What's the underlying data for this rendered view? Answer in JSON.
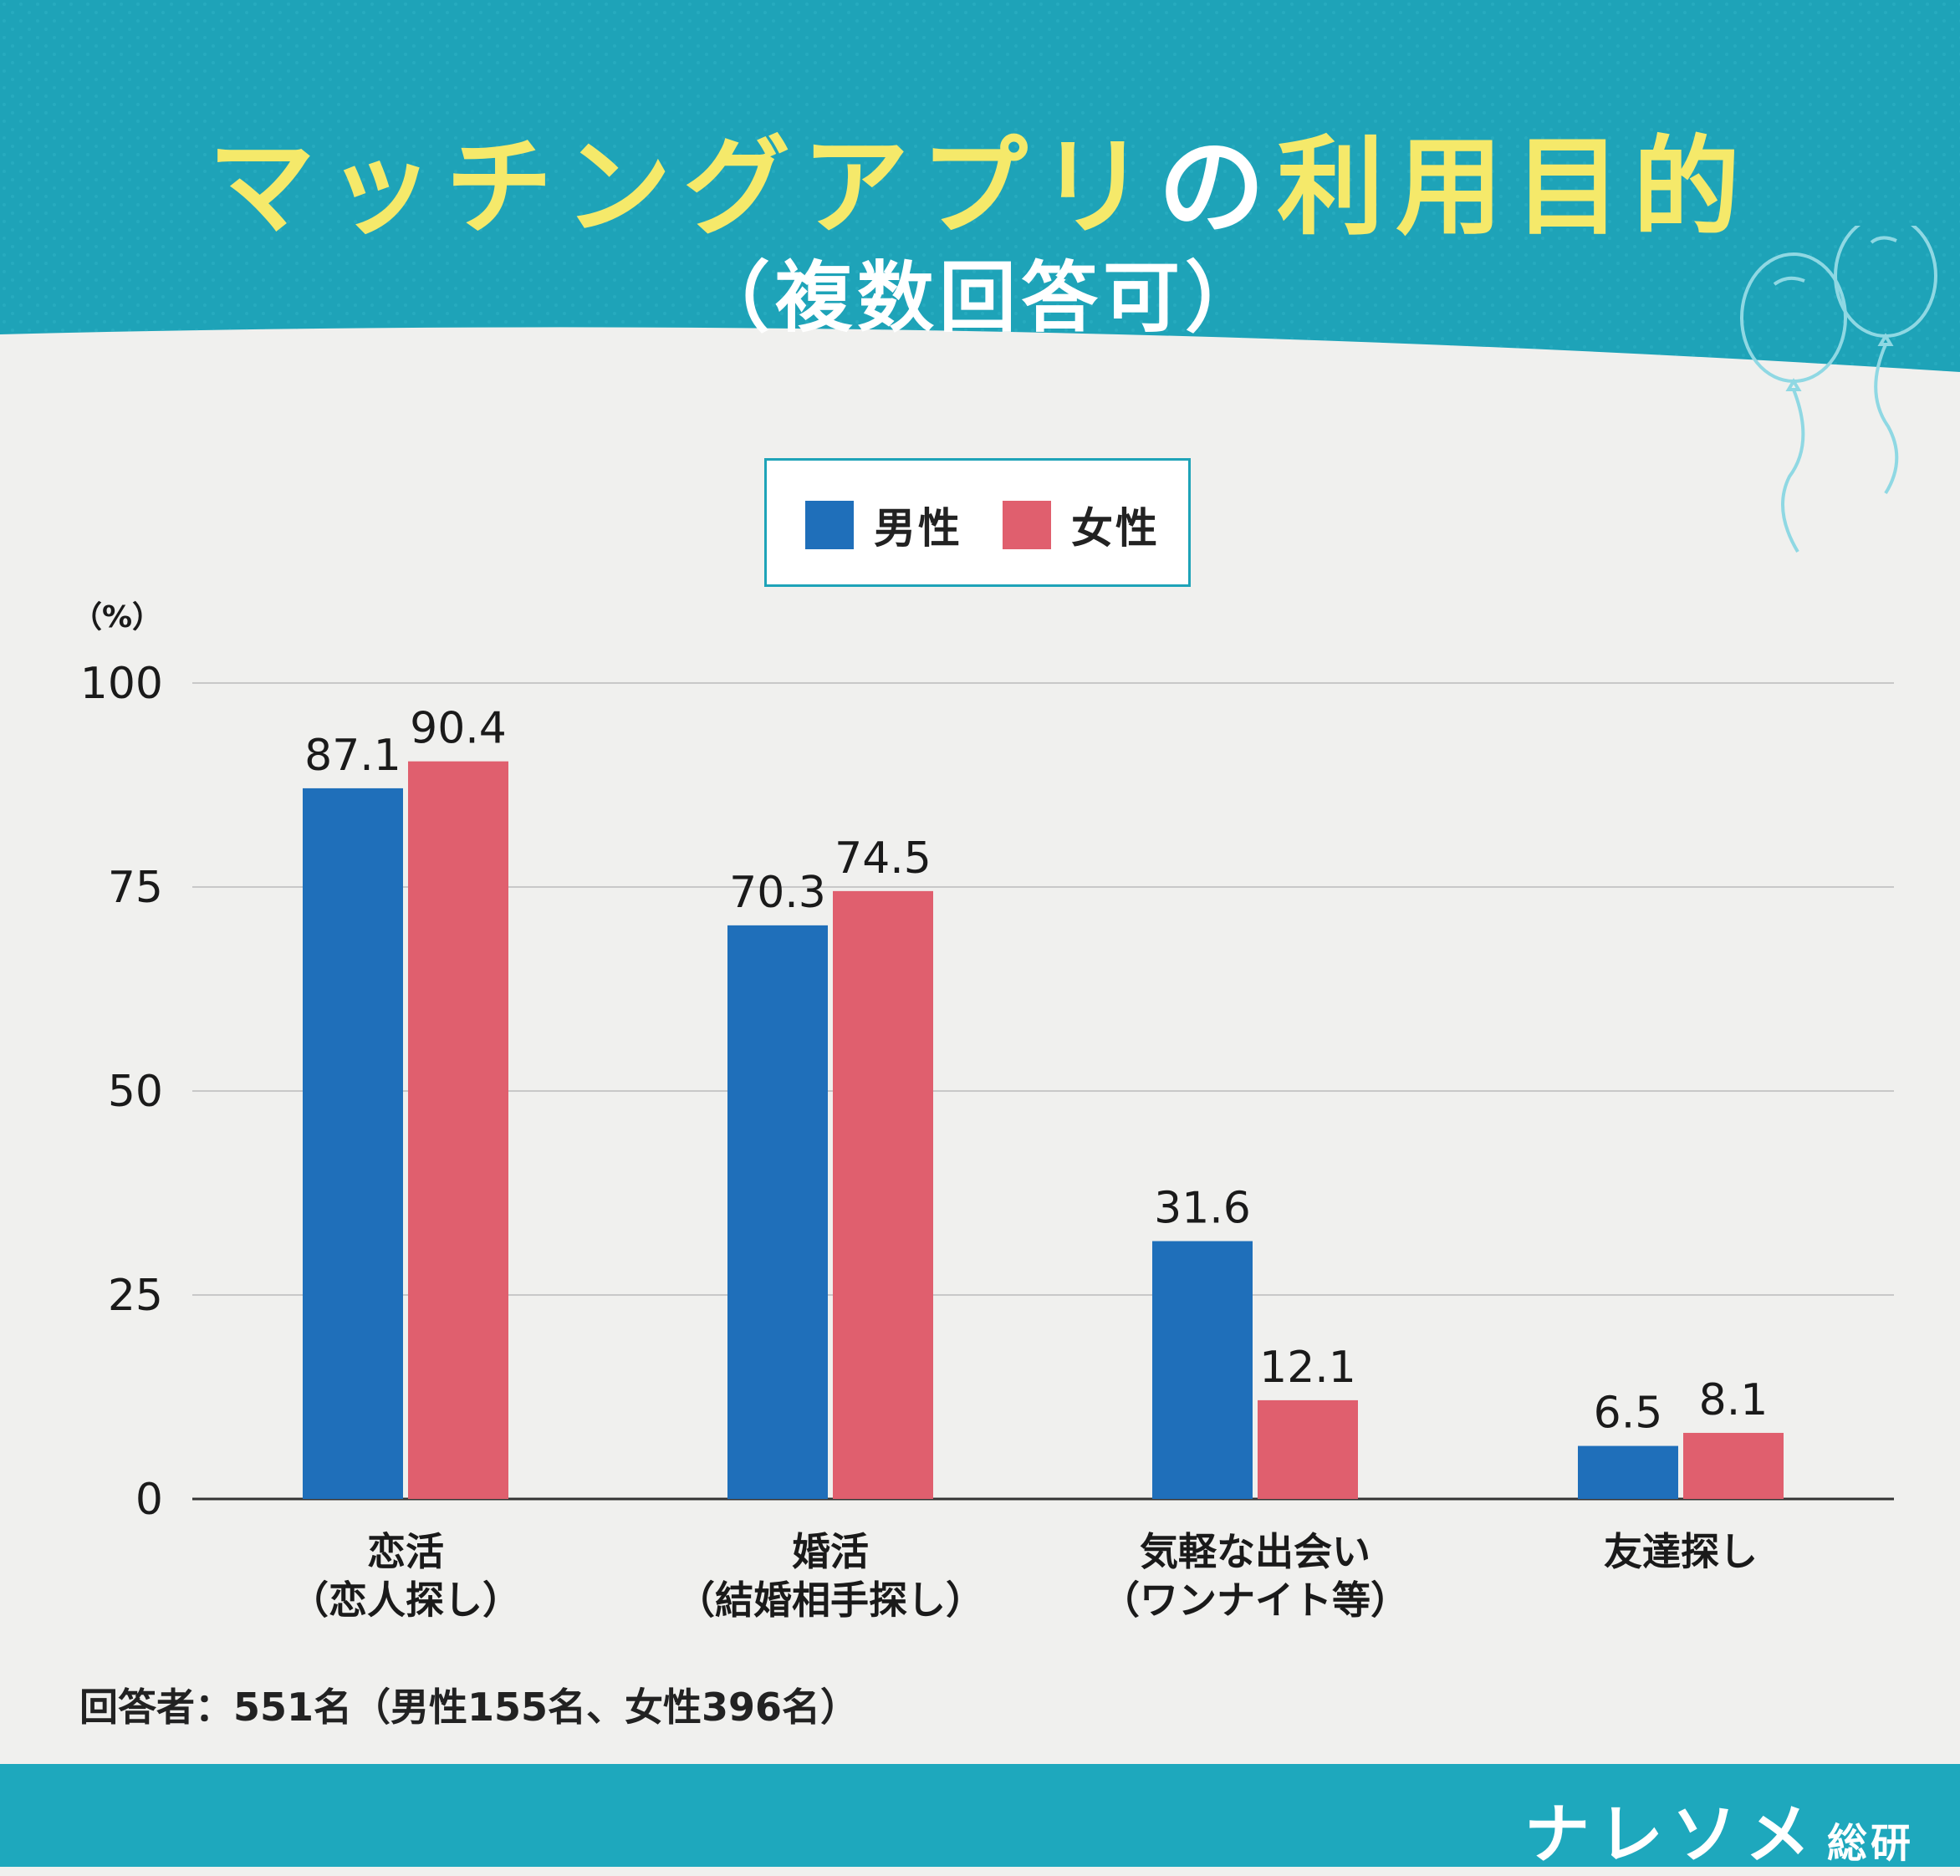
{
  "title": {
    "part1": "マッチングアプリ",
    "part2": "の",
    "part3": "利用目的",
    "subtitle": "（複数回答可）"
  },
  "colors": {
    "header_bg": "#1ea3b8",
    "male": "#1f6fba",
    "female": "#e05f6e",
    "title_yellow": "#f5e96a"
  },
  "legend": {
    "male": "男性",
    "female": "女性"
  },
  "unit": "（%）",
  "note": "回答者：551名（男性155名、女性396名）",
  "brand": {
    "main": "ナレソメ",
    "sub": "総研"
  },
  "chart_data": {
    "type": "bar",
    "categories": [
      [
        "恋活",
        "（恋人探し）"
      ],
      [
        "婚活",
        "（結婚相手探し）"
      ],
      [
        "気軽な出会い",
        "（ワンナイト等）"
      ],
      [
        "友達探し"
      ]
    ],
    "series": [
      {
        "name": "男性",
        "color": "#1f6fba",
        "values": [
          87.1,
          70.3,
          31.6,
          6.5
        ]
      },
      {
        "name": "女性",
        "color": "#e05f6e",
        "values": [
          90.4,
          74.5,
          12.1,
          8.1
        ]
      }
    ],
    "ylim": [
      0,
      100
    ],
    "yticks": [
      0,
      25,
      50,
      75,
      100
    ],
    "ylabel": "（%）",
    "grid": true,
    "legend_position": "top-center"
  }
}
